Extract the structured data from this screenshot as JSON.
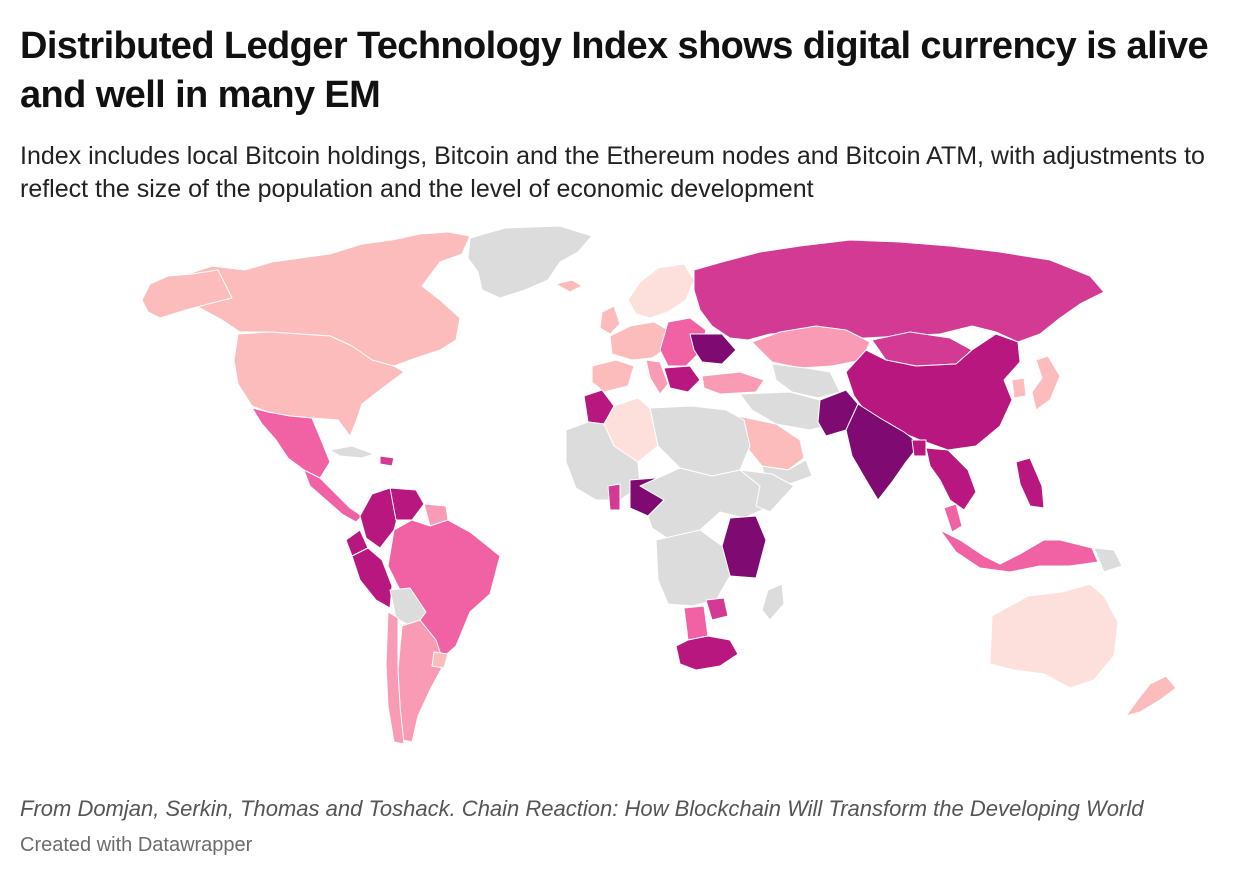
{
  "header": {
    "title": "Distributed Ledger Technology Index shows digital currency is alive and well in many EM",
    "subtitle": "Index includes local Bitcoin holdings, Bitcoin and the Ethereum nodes and Bitcoin ATM, with adjustments to reflect the size of the population and the level of economic development"
  },
  "footer": {
    "source": "From Domjan, Serkin, Thomas and Toshack. Chain Reaction: How Blockchain Will Transform the Developing World",
    "credit": "Created with Datawrapper"
  },
  "colors": {
    "no_data": "#dcdcdc",
    "level_1": "#fde0dc",
    "level_2": "#fcbcbc",
    "level_3": "#f99bb4",
    "level_4": "#f062a3",
    "level_5": "#d23a93",
    "level_6": "#b8177f",
    "level_7": "#7e0a72"
  }
}
